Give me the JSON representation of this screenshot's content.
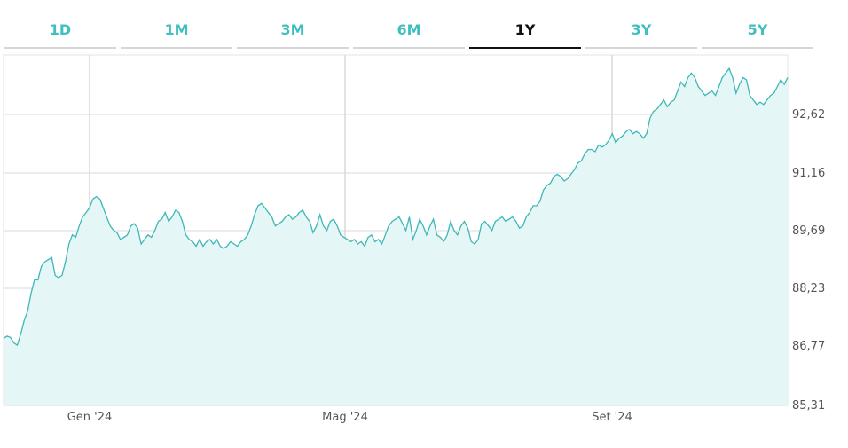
{
  "tabs": [
    {
      "label": "1D"
    },
    {
      "label": "1M"
    },
    {
      "label": "3M"
    },
    {
      "label": "6M"
    },
    {
      "label": "1Y",
      "active": true
    },
    {
      "label": "3Y"
    },
    {
      "label": "5Y"
    }
  ],
  "colors": {
    "accent": "#3fbfbf",
    "line": "#3fb7b7",
    "fill": "#e4f7f6",
    "active_tab": "#111111"
  },
  "chart_data": {
    "type": "area",
    "y_ticks": [
      "92,62",
      "91,16",
      "89,69",
      "88,23",
      "86,77",
      "85,31"
    ],
    "x_ticks": [
      "Gen '24",
      "Mag '24",
      "Set '24"
    ],
    "ylim": [
      85.31,
      93.1
    ],
    "grid": true,
    "values": [
      86.8,
      86.85,
      86.82,
      86.7,
      86.65,
      86.9,
      87.2,
      87.4,
      87.8,
      88.1,
      88.1,
      88.4,
      88.5,
      88.55,
      88.6,
      88.2,
      88.15,
      88.2,
      88.5,
      88.9,
      89.1,
      89.05,
      89.3,
      89.5,
      89.6,
      89.7,
      89.9,
      89.95,
      89.9,
      89.7,
      89.5,
      89.3,
      89.2,
      89.15,
      89.0,
      89.05,
      89.1,
      89.3,
      89.35,
      89.25,
      88.9,
      89.0,
      89.1,
      89.05,
      89.2,
      89.4,
      89.45,
      89.6,
      89.4,
      89.5,
      89.65,
      89.6,
      89.4,
      89.1,
      89.0,
      88.95,
      88.85,
      89.0,
      88.85,
      88.95,
      89.0,
      88.9,
      89.0,
      88.85,
      88.8,
      88.85,
      88.95,
      88.9,
      88.85,
      88.95,
      89.0,
      89.1,
      89.3,
      89.55,
      89.75,
      89.8,
      89.7,
      89.6,
      89.5,
      89.3,
      89.35,
      89.4,
      89.5,
      89.55,
      89.45,
      89.5,
      89.6,
      89.65,
      89.5,
      89.4,
      89.15,
      89.3,
      89.55,
      89.3,
      89.2,
      89.4,
      89.45,
      89.3,
      89.1,
      89.05,
      89.0,
      88.95,
      89.0,
      88.9,
      88.95,
      88.85,
      89.05,
      89.1,
      88.95,
      89.0,
      88.9,
      89.1,
      89.3,
      89.4,
      89.45,
      89.5,
      89.35,
      89.2,
      89.5,
      89.0,
      89.2,
      89.45,
      89.3,
      89.1,
      89.3,
      89.45,
      89.1,
      89.05,
      88.95,
      89.1,
      89.4,
      89.2,
      89.1,
      89.3,
      89.4,
      89.25,
      88.95,
      88.9,
      89.0,
      89.35,
      89.4,
      89.3,
      89.2,
      89.4,
      89.45,
      89.5,
      89.4,
      89.45,
      89.5,
      89.4,
      89.25,
      89.3,
      89.5,
      89.6,
      89.75,
      89.75,
      89.85,
      90.1,
      90.2,
      90.25,
      90.4,
      90.45,
      90.4,
      90.3,
      90.35,
      90.45,
      90.55,
      90.7,
      90.75,
      90.9,
      91.0,
      91.0,
      90.95,
      91.1,
      91.05,
      91.1,
      91.2,
      91.35,
      91.15,
      91.25,
      91.3,
      91.4,
      91.45,
      91.35,
      91.4,
      91.35,
      91.25,
      91.35,
      91.7,
      91.85,
      91.9,
      92.0,
      92.1,
      91.95,
      92.05,
      92.1,
      92.3,
      92.5,
      92.4,
      92.6,
      92.7,
      92.6,
      92.4,
      92.3,
      92.2,
      92.25,
      92.3,
      92.2,
      92.4,
      92.6,
      92.7,
      92.8,
      92.6,
      92.25,
      92.45,
      92.6,
      92.55,
      92.2,
      92.1,
      92.0,
      92.05,
      92.0,
      92.1,
      92.2,
      92.25,
      92.4,
      92.55,
      92.45,
      92.6
    ]
  }
}
